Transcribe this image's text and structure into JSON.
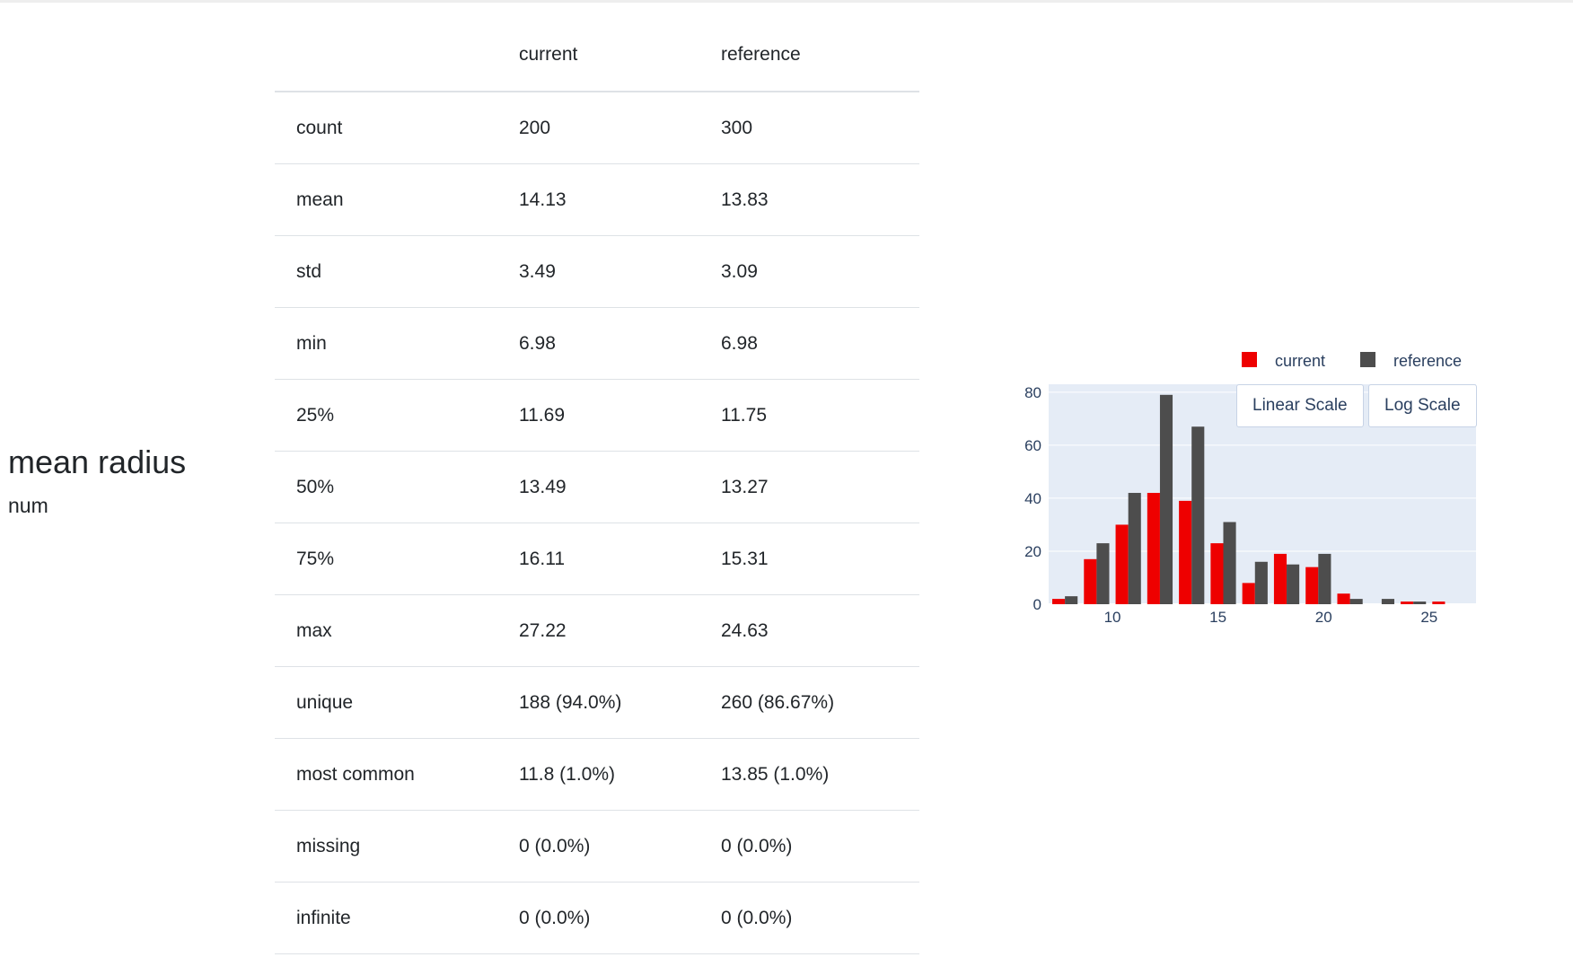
{
  "feature": {
    "name": "mean radius",
    "type": "num"
  },
  "table": {
    "headers": [
      "",
      "current",
      "reference"
    ],
    "rows": [
      [
        "count",
        "200",
        "300"
      ],
      [
        "mean",
        "14.13",
        "13.83"
      ],
      [
        "std",
        "3.49",
        "3.09"
      ],
      [
        "min",
        "6.98",
        "6.98"
      ],
      [
        "25%",
        "11.69",
        "11.75"
      ],
      [
        "50%",
        "13.49",
        "13.27"
      ],
      [
        "75%",
        "16.11",
        "15.31"
      ],
      [
        "max",
        "27.22",
        "24.63"
      ],
      [
        "unique",
        "188 (94.0%)",
        "260 (86.67%)"
      ],
      [
        "most common",
        "11.8 (1.0%)",
        "13.85 (1.0%)"
      ],
      [
        "missing",
        "0 (0.0%)",
        "0 (0.0%)"
      ],
      [
        "infinite",
        "0 (0.0%)",
        "0 (0.0%)"
      ]
    ]
  },
  "buttons": {
    "linear": "Linear Scale",
    "log": "Log Scale"
  },
  "chart_data": {
    "type": "bar",
    "bin_starts": [
      7,
      8.5,
      10,
      11.5,
      13,
      14.5,
      16,
      17.5,
      19,
      20.5,
      22,
      23.5,
      25
    ],
    "bin_width": 1.5,
    "series": [
      {
        "name": "current",
        "color": "#ee0000",
        "values": [
          2,
          17,
          30,
          42,
          39,
          23,
          8,
          19,
          14,
          4,
          0,
          1,
          1
        ]
      },
      {
        "name": "reference",
        "color": "#4d4d4d",
        "values": [
          3,
          23,
          42,
          79,
          67,
          31,
          16,
          15,
          19,
          2,
          2,
          1,
          0
        ]
      }
    ],
    "xlim": [
      6.98,
      27.22
    ],
    "ylim": [
      0,
      83
    ],
    "x_ticks": [
      10,
      15,
      20,
      25
    ],
    "y_ticks": [
      0,
      20,
      40,
      60,
      80
    ],
    "legend_position": "top-right",
    "grid": true,
    "plot_bg": "#e5ecf6"
  }
}
